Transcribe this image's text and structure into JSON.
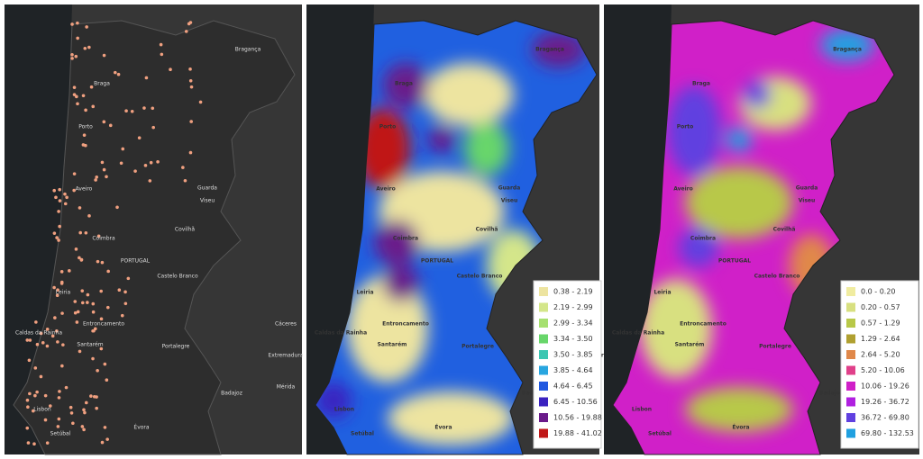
{
  "places": [
    "Bragança",
    "Braga",
    "Porto",
    "Aveiro",
    "Viseu",
    "Guarda",
    "Covilhã",
    "Coimbra",
    "PORTUGAL",
    "Castelo Branco",
    "Leiria",
    "Caldas da Rainha",
    "Entroncamento",
    "Santarém",
    "Portalegre",
    "Cáceres",
    "Lisbon",
    "Setúbal",
    "Évora",
    "Badajoz",
    "Mérida",
    "Extremadura"
  ],
  "legend_middle": {
    "items": [
      {
        "label": "0.38 - 2.19",
        "color": "#ede4a0"
      },
      {
        "label": "2.19 - 2.99",
        "color": "#d4e68a"
      },
      {
        "label": "2.99 - 3.34",
        "color": "#a6e070"
      },
      {
        "label": "3.34 - 3.50",
        "color": "#68d66a"
      },
      {
        "label": "3.50 - 3.85",
        "color": "#3cc6b2"
      },
      {
        "label": "3.85 - 4.64",
        "color": "#28a6e0"
      },
      {
        "label": "4.64 - 6.45",
        "color": "#2058e0"
      },
      {
        "label": "6.45 - 10.56",
        "color": "#3a22c0"
      },
      {
        "label": "10.56 - 19.88",
        "color": "#6a1a8a"
      },
      {
        "label": "19.88 - 41.02",
        "color": "#c01818"
      }
    ]
  },
  "legend_right": {
    "items": [
      {
        "label": "0.0 - 0.20",
        "color": "#f0eca0"
      },
      {
        "label": "0.20 - 0.57",
        "color": "#d8e080"
      },
      {
        "label": "0.57 - 1.29",
        "color": "#b8c848"
      },
      {
        "label": "1.29 - 2.64",
        "color": "#b0a030"
      },
      {
        "label": "2.64 - 5.20",
        "color": "#e0884a"
      },
      {
        "label": "5.20 - 10.06",
        "color": "#e0408a"
      },
      {
        "label": "10.06 - 19.26",
        "color": "#d020c8"
      },
      {
        "label": "19.26 - 36.72",
        "color": "#b020e0"
      },
      {
        "label": "36.72 - 69.80",
        "color": "#6040e0"
      },
      {
        "label": "69.80 - 132.53",
        "color": "#20a0e0"
      }
    ]
  }
}
